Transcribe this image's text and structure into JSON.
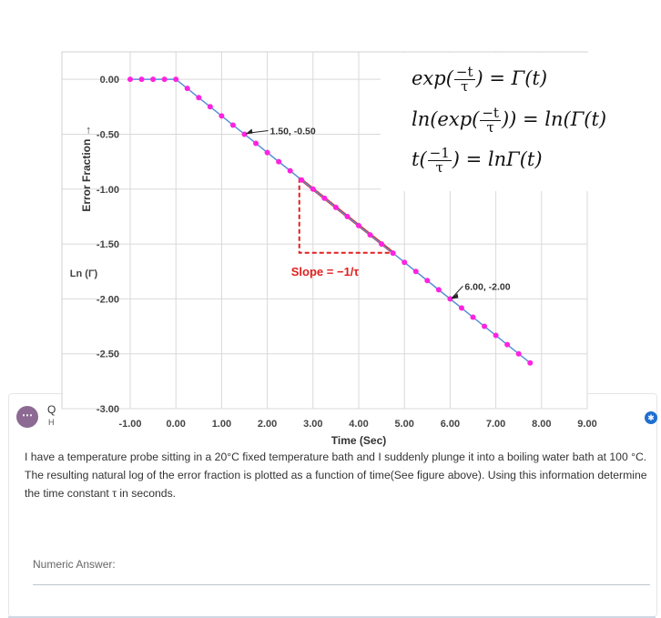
{
  "chart_data": {
    "type": "scatter",
    "x": [
      -1.0,
      -0.75,
      -0.5,
      -0.25,
      0.0,
      0.25,
      0.5,
      0.75,
      1.0,
      1.25,
      1.5,
      1.75,
      2.0,
      2.25,
      2.5,
      2.75,
      3.0,
      3.25,
      3.5,
      3.75,
      4.0,
      4.25,
      4.5,
      4.75,
      5.0,
      5.25,
      5.5,
      5.75,
      6.0,
      6.25,
      6.5,
      6.75,
      7.0,
      7.25,
      7.5,
      7.75
    ],
    "y": [
      0.0,
      0.0,
      0.0,
      0.0,
      0.0,
      -0.083,
      -0.167,
      -0.25,
      -0.333,
      -0.417,
      -0.5,
      -0.583,
      -0.667,
      -0.75,
      -0.833,
      -0.917,
      -1.0,
      -1.083,
      -1.167,
      -1.25,
      -1.333,
      -1.417,
      -1.5,
      -1.583,
      -1.667,
      -1.75,
      -1.833,
      -1.917,
      -2.0,
      -2.083,
      -2.167,
      -2.25,
      -2.333,
      -2.417,
      -2.5,
      -2.583
    ],
    "xlabel": "Time (Sec)",
    "ylabel": "Error Fraction →",
    "ylabel2": "Ln (Γ)",
    "xlim": [
      -1,
      9
    ],
    "ylim": [
      -3,
      0.25
    ],
    "xticks": [
      "-1.00",
      "0.00",
      "1.00",
      "2.00",
      "3.00",
      "4.00",
      "5.00",
      "6.00",
      "7.00",
      "8.00",
      "9.00"
    ],
    "xtick_values": [
      -1,
      0,
      1,
      2,
      3,
      4,
      5,
      6,
      7,
      8,
      9
    ],
    "yticks": [
      "0.00",
      "-0.50",
      "-1.00",
      "-1.50",
      "-2.00",
      "-2.50",
      "-3.00"
    ],
    "ytick_values": [
      0,
      -0.5,
      -1,
      -1.5,
      -2,
      -2.5,
      -3
    ],
    "grid": true,
    "annotations": [
      {
        "text": "1.50, -0.50",
        "x": 1.5,
        "y": -0.5
      },
      {
        "text": "6.00, -2.00",
        "x": 6.0,
        "y": -2.0
      }
    ],
    "slope_label": "Slope = −1/τ",
    "triangle": {
      "x1": 2.7,
      "y1": -0.9,
      "x2": 4.75,
      "y2": -1.58
    },
    "colors": {
      "line": "#5b8fd6",
      "marker": "#ff22e0",
      "triangle": "#e02020",
      "grid": "#d9d9d9"
    }
  },
  "equations": {
    "line1_a": "exp(",
    "line1_num": "−t",
    "line1_den": "τ",
    "line1_b": ") = Γ(t)",
    "line2_a": "ln(exp(",
    "line2_num": "−t",
    "line2_den": "τ",
    "line2_b": ")) = ln(Γ(t)",
    "line3_a": "t(",
    "line3_num": "−1",
    "line3_den": "τ",
    "line3_b": ") = lnΓ(t)"
  },
  "question": {
    "avatar": "⋯",
    "q_label": "Q",
    "h_label": "H",
    "text": "I have a temperature probe sitting in a 20°C fixed temperature bath and I suddenly plunge it into a boiling water bath at 100 °C. The resulting natural log of the error fraction is plotted as a function of time(See figure above). Using this information determine the time constant τ in seconds.",
    "answer_label": "Numeric Answer:",
    "answer_value": "",
    "help_icon": "✱"
  }
}
